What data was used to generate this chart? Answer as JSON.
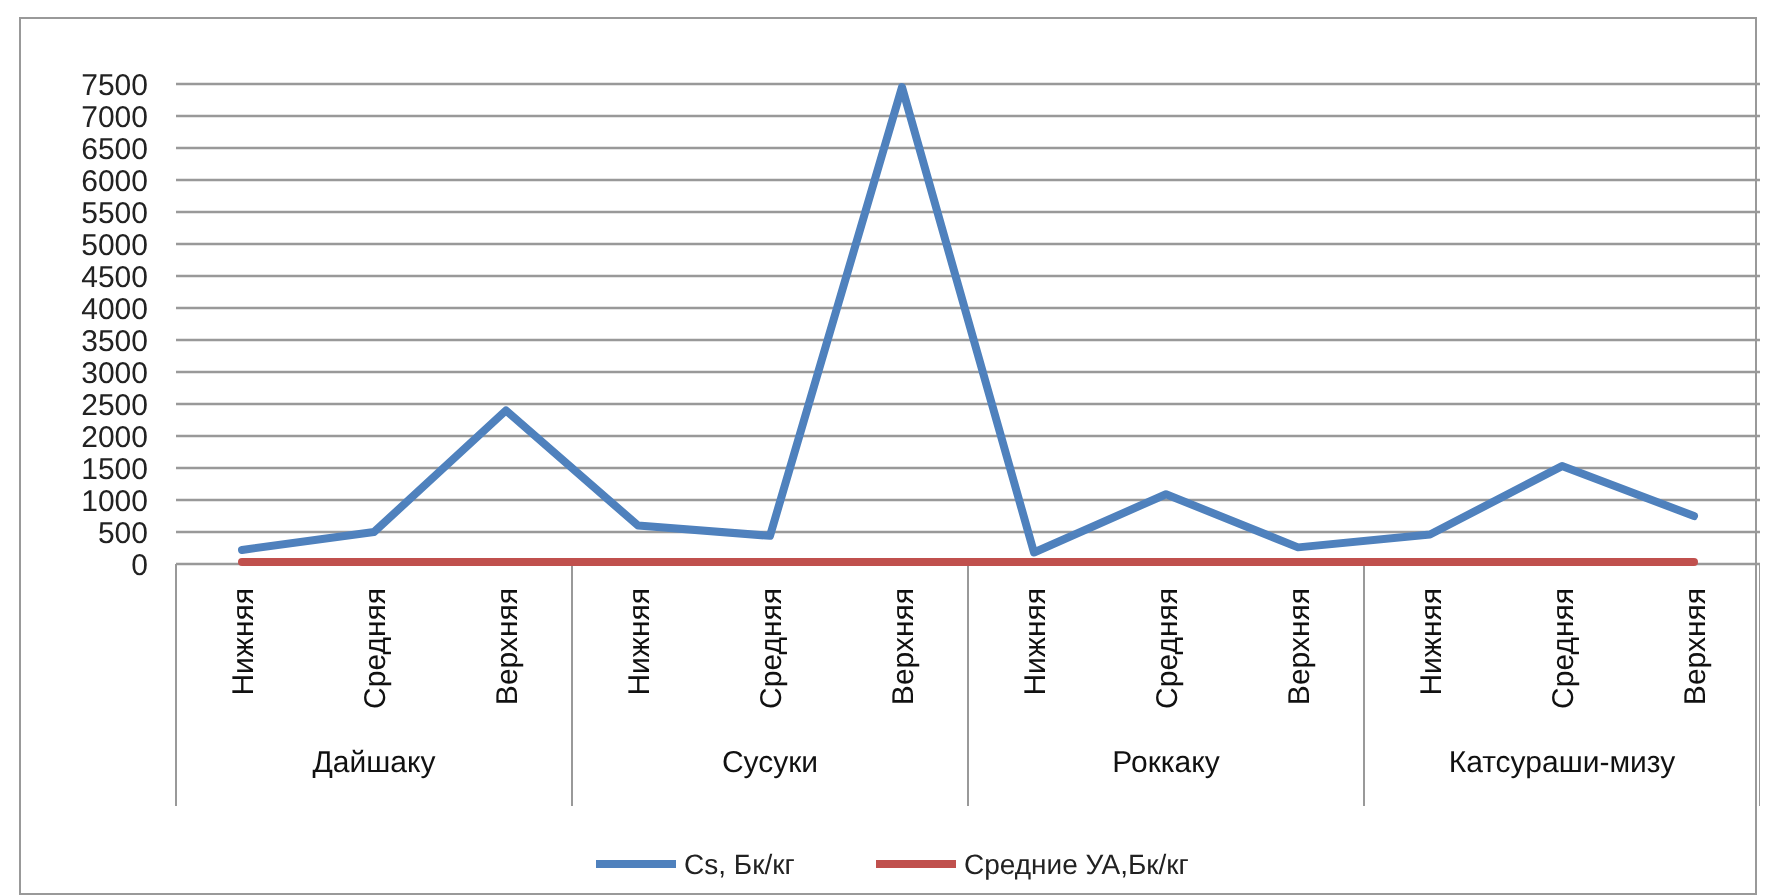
{
  "chart_data": {
    "type": "line",
    "categories": [
      "Нижняя",
      "Средняя",
      "Верхняя",
      "Нижняя",
      "Средняя",
      "Верхняя",
      "Нижняя",
      "Средняя",
      "Верхняя",
      "Нижняя",
      "Средняя",
      "Верхняя"
    ],
    "annotations": [
      "Дайшаку",
      "Сусуки",
      "Роккаку",
      "Катсураши-мизу"
    ],
    "series": [
      {
        "name": "Cs, Бк/кг",
        "color": "#4f81bd",
        "values": [
          220,
          500,
          2400,
          600,
          440,
          7450,
          180,
          1090,
          260,
          460,
          1530,
          750
        ]
      },
      {
        "name": "Средние  УА,Бк/кг",
        "color": "#c0504d",
        "values": [
          30,
          30,
          30,
          30,
          30,
          30,
          30,
          30,
          30,
          30,
          30,
          30
        ]
      }
    ],
    "ylim": [
      0,
      7500
    ],
    "yticks": [
      0,
      500,
      1000,
      1500,
      2000,
      2500,
      3000,
      3500,
      4000,
      4500,
      5000,
      5500,
      6000,
      6500,
      7000,
      7500
    ],
    "grid": "y",
    "legend": "bottom",
    "marker": "none",
    "line_style": "solid"
  }
}
